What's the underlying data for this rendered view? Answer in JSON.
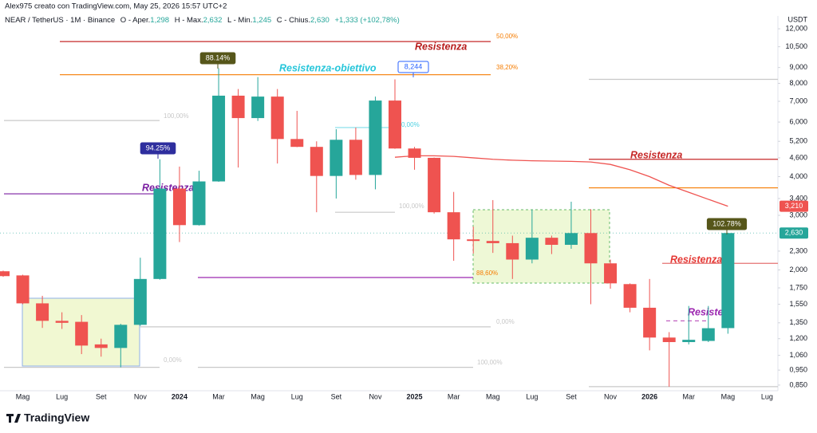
{
  "header": {
    "author_line": "Alex975 creato con TradingView.com, May 25, 2026 15:57 UTC+2",
    "symbol": "NEAR / TetherUS · 1M · Binance",
    "ohlc": [
      {
        "key": "O - Aper.",
        "value": "1,298"
      },
      {
        "key": "H - Max.",
        "value": "2,632"
      },
      {
        "key": "L - Min.",
        "value": "1,245"
      },
      {
        "key": "C - Chius.",
        "value": "2,630"
      }
    ],
    "change": "+1,333 (+102,78%)",
    "logo": "TradingView"
  },
  "chart_data": {
    "type": "candlestick",
    "currency": "USDT",
    "log_scale": true,
    "grid": false,
    "up_color": "#26a69a",
    "down_color": "#ef5350",
    "categories": [
      null,
      "Mag",
      null,
      "Lug",
      null,
      "Set",
      null,
      "Nov",
      null,
      "2024",
      null,
      "Mar",
      null,
      "Mag",
      null,
      "Lug",
      null,
      "Set",
      null,
      "Nov",
      null,
      "2025",
      null,
      "Mar",
      null,
      "Mag",
      null,
      "Lug",
      null,
      "Set",
      null,
      "Nov",
      null,
      "2026",
      null,
      "Mar",
      null,
      "Mag",
      null,
      "Lug"
    ],
    "year_labels": [
      "2024",
      "2025",
      "2026"
    ],
    "open": [
      1.98,
      1.92,
      1.56,
      1.37,
      1.36,
      1.15,
      1.12,
      1.33,
      1.87,
      3.66,
      2.79,
      3.86,
      7.3,
      6.18,
      7.25,
      5.29,
      4.99,
      4.02,
      5.26,
      4.05,
      7.04,
      4.93,
      4.6,
      3.07,
      2.51,
      2.48,
      2.44,
      2.16,
      2.54,
      2.41,
      2.63,
      2.1,
      1.8,
      1.51,
      1.21,
      1.17,
      1.18,
      1.298,
      null,
      null
    ],
    "high": [
      1.99,
      1.93,
      1.65,
      1.46,
      1.43,
      1.2,
      1.34,
      2.19,
      4.55,
      4.31,
      4.18,
      8.95,
      7.67,
      8.38,
      7.67,
      6.52,
      5.2,
      5.69,
      5.76,
      7.25,
      8.24,
      4.99,
      4.61,
      3.57,
      2.76,
      3.36,
      2.58,
      3.13,
      2.58,
      3.32,
      3.14,
      2.16,
      1.81,
      1.87,
      1.26,
      1.53,
      1.53,
      2.632,
      null,
      null
    ],
    "low": [
      1.9,
      1.55,
      1.3,
      1.29,
      1.07,
      1.05,
      0.97,
      1.32,
      1.86,
      2.46,
      2.78,
      3.85,
      4.28,
      6.05,
      4.41,
      4.98,
      3.07,
      3.4,
      3.91,
      3.64,
      4.92,
      4.21,
      3.04,
      2.14,
      2.26,
      2.27,
      1.87,
      2.1,
      2.25,
      2.34,
      1.55,
      1.74,
      1.46,
      1.1,
      0.84,
      1.15,
      1.17,
      1.245,
      null,
      null
    ],
    "close": [
      1.91,
      1.56,
      1.37,
      1.35,
      1.14,
      1.12,
      1.33,
      1.87,
      3.66,
      2.79,
      3.86,
      7.3,
      6.18,
      7.25,
      5.29,
      4.99,
      4.02,
      5.26,
      4.05,
      7.04,
      4.93,
      4.6,
      3.07,
      2.51,
      2.48,
      2.44,
      2.16,
      2.54,
      2.41,
      2.63,
      2.1,
      1.81,
      1.51,
      1.21,
      1.17,
      1.19,
      1.297,
      2.63,
      null,
      null
    ],
    "moving_average": {
      "color": "#ef5350",
      "values": [
        null,
        null,
        null,
        null,
        null,
        null,
        null,
        null,
        null,
        null,
        null,
        null,
        null,
        null,
        null,
        null,
        null,
        null,
        null,
        null,
        4.62,
        4.67,
        4.67,
        4.65,
        4.6,
        4.55,
        4.52,
        4.5,
        4.49,
        4.48,
        4.46,
        4.38,
        4.21,
        4.0,
        3.75,
        3.56,
        3.38,
        3.21,
        null,
        null
      ]
    },
    "price_tags": [
      {
        "value": 3.21,
        "label": "3,210",
        "color": "#ef5350"
      },
      {
        "value": 2.63,
        "label": "2,630",
        "color": "#26a69a"
      }
    ],
    "levels": [
      {
        "price": 10.91,
        "color": "#c62828",
        "text": "50,00%",
        "text_color": "#f57c00",
        "title": "Resistenza",
        "title_color": "#b71c1c"
      },
      {
        "price": 8.53,
        "color": "#f57c00",
        "text": "38,20%",
        "text_color": "#f57c00",
        "title": "Resistenza-obiettivo",
        "title_color": "#26c6da"
      },
      {
        "price": 6.07,
        "color": "#c8c8c8",
        "text": "100,00%",
        "text_color": "#c8c8c8"
      },
      {
        "price": 3.52,
        "color": "#7b1fa2",
        "title": "Resistenza",
        "title_color": "#7b1fa2"
      },
      {
        "price": 1.31,
        "color": "#c8c8c8",
        "text": "0,00%",
        "text_color": "#c8c8c8"
      },
      {
        "price": 0.97,
        "color": "#c8c8c8",
        "text": "100,00%",
        "text_color": "#c8c8c8"
      },
      {
        "price": 0.97,
        "color": "#c8c8c8",
        "text": "0,00%",
        "text_color": "#c8c8c8"
      },
      {
        "price": 1.89,
        "color": "#9c27b0",
        "text": "88,60%",
        "text_color": "#f57c00"
      },
      {
        "price": 3.07,
        "color": "#c8c8c8",
        "text": "100,00%",
        "text_color": "#c8c8c8"
      },
      {
        "price": 5.76,
        "color": "#80deea",
        "text": "0,00%",
        "text_color": "#4dd0e1"
      },
      {
        "price": 8.24,
        "color": "#c8c8c8"
      },
      {
        "price": 4.55,
        "color": "#c62828",
        "title": "Resistenza",
        "title_color": "#c62828"
      },
      {
        "price": 3.68,
        "color": "#f57c00"
      },
      {
        "price": 2.1,
        "color": "#e57373",
        "title": "Resistenza",
        "title_color": "#e53935"
      },
      {
        "price": 0.84,
        "color": "#c8c8c8"
      },
      {
        "price": 1.37,
        "color": "#c060c0",
        "dashed": true,
        "title": "Resister",
        "title_color": "#9c27b0"
      }
    ],
    "callouts": [
      {
        "text": "94.25%",
        "bg": "#2e2e9e",
        "fg": "#ffffff"
      },
      {
        "text": "88.14%",
        "bg": "#56561a",
        "fg": "#ffffff"
      },
      {
        "text": "8,244",
        "bg": "#ffffff",
        "fg": "#2962ff",
        "border": "#2962ff"
      },
      {
        "text": "102.78%",
        "bg": "#56561a",
        "fg": "#ffffff"
      }
    ],
    "ylim": [
      0.815,
      13.2
    ],
    "yticks": [
      {
        "value": 12,
        "label": "12,000"
      },
      {
        "value": 10.5,
        "label": "10,500"
      },
      {
        "value": 9,
        "label": "9,000"
      },
      {
        "value": 8,
        "label": "8,000"
      },
      {
        "value": 7,
        "label": "7,000"
      },
      {
        "value": 6,
        "label": "6,000"
      },
      {
        "value": 5.2,
        "label": "5,200"
      },
      {
        "value": 4.6,
        "label": "4,600"
      },
      {
        "value": 4,
        "label": "4,000"
      },
      {
        "value": 3.4,
        "label": "3,400"
      },
      {
        "value": 3,
        "label": "3,000"
      },
      {
        "value": 2.3,
        "label": "2,300"
      },
      {
        "value": 2,
        "label": "2,000"
      },
      {
        "value": 1.75,
        "label": "1,750"
      },
      {
        "value": 1.55,
        "label": "1,550"
      },
      {
        "value": 1.35,
        "label": "1,350"
      },
      {
        "value": 1.2,
        "label": "1,200"
      },
      {
        "value": 1.06,
        "label": "1,060"
      },
      {
        "value": 0.95,
        "label": "0,950"
      },
      {
        "value": 0.85,
        "label": "0,850"
      }
    ]
  }
}
